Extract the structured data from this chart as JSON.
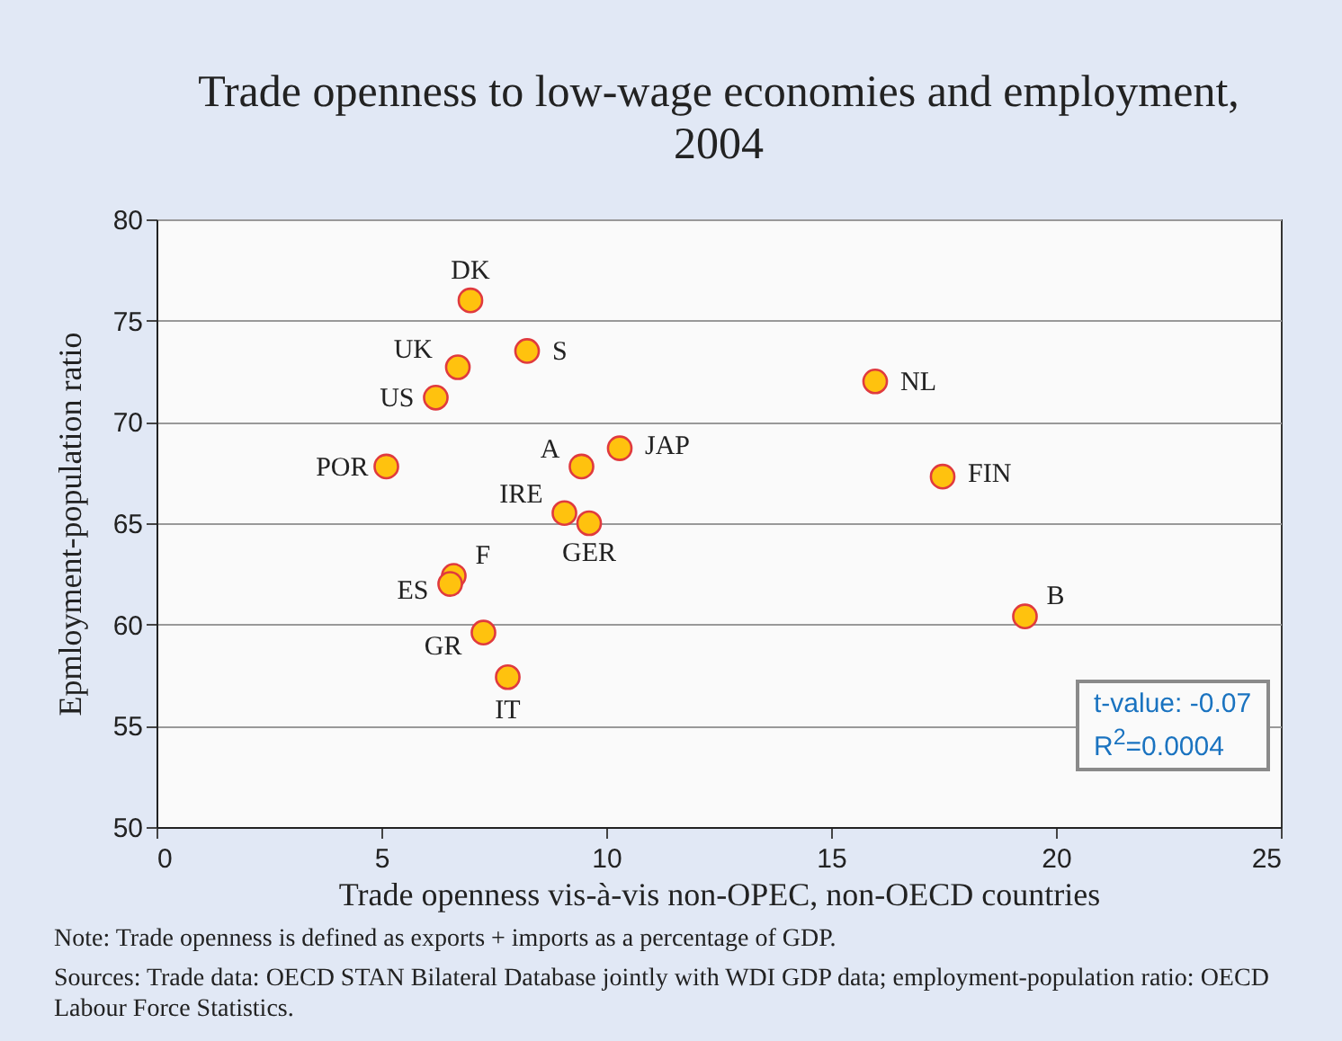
{
  "chart_data": {
    "type": "scatter",
    "title": "Trade openness to low-wage economies and employment, 2004",
    "xlabel": "Trade openness vis-à-vis non-OPEC, non-OECD countries",
    "ylabel": "Epmloyment-population ratio",
    "series": [
      {
        "name": "DK",
        "color": "#ffc20e",
        "x": [
          6.98
        ],
        "values": [
          76.0
        ]
      },
      {
        "name": "S",
        "color": "#ffc20e",
        "x": [
          8.24
        ],
        "values": [
          73.5
        ]
      },
      {
        "name": "UK",
        "color": "#ffc20e",
        "x": [
          6.7
        ],
        "values": [
          72.7
        ]
      },
      {
        "name": "US",
        "color": "#ffc20e",
        "x": [
          6.21
        ],
        "values": [
          71.2
        ]
      },
      {
        "name": "NL",
        "color": "#ffc20e",
        "x": [
          15.98
        ],
        "values": [
          72.0
        ]
      },
      {
        "name": "POR",
        "color": "#ffc20e",
        "x": [
          5.11
        ],
        "values": [
          67.8
        ]
      },
      {
        "name": "A",
        "color": "#ffc20e",
        "x": [
          9.45
        ],
        "values": [
          67.8
        ]
      },
      {
        "name": "JAP",
        "color": "#ffc20e",
        "x": [
          10.3
        ],
        "values": [
          68.7
        ]
      },
      {
        "name": "FIN",
        "color": "#ffc20e",
        "x": [
          17.48
        ],
        "values": [
          67.3
        ]
      },
      {
        "name": "IRE",
        "color": "#ffc20e",
        "x": [
          9.07
        ],
        "values": [
          65.5
        ]
      },
      {
        "name": "GER",
        "color": "#ffc20e",
        "x": [
          9.62
        ],
        "values": [
          65.0
        ]
      },
      {
        "name": "F",
        "color": "#ffc20e",
        "x": [
          6.61
        ],
        "values": [
          62.4
        ]
      },
      {
        "name": "ES",
        "color": "#ffc20e",
        "x": [
          6.53
        ],
        "values": [
          62.0
        ]
      },
      {
        "name": "GR",
        "color": "#ffc20e",
        "x": [
          7.27
        ],
        "values": [
          59.6
        ]
      },
      {
        "name": "IT",
        "color": "#ffc20e",
        "x": [
          7.81
        ],
        "values": [
          57.4
        ]
      },
      {
        "name": "B",
        "color": "#ffc20e",
        "x": [
          19.31
        ],
        "values": [
          60.4
        ]
      }
    ],
    "xlim": [
      0,
      25
    ],
    "xticks": [
      0,
      5,
      10,
      15,
      20,
      25
    ],
    "ylim": [
      50,
      80
    ],
    "yticks": [
      50,
      55,
      60,
      65,
      70,
      75,
      80
    ],
    "grid": "y",
    "legend": false,
    "marker": "circle",
    "annotations": [
      "t-value: -0.07",
      "R$^{2}$=0.0004",
      "Note: Trade openness is defined as exports + imports as a percentage of GDP.",
      "Sources: Trade data: OECD STAN Bilateral Database jointly with WDI GDP data; employment-population ratio: OECD Labour Force Statistics."
    ]
  }
}
